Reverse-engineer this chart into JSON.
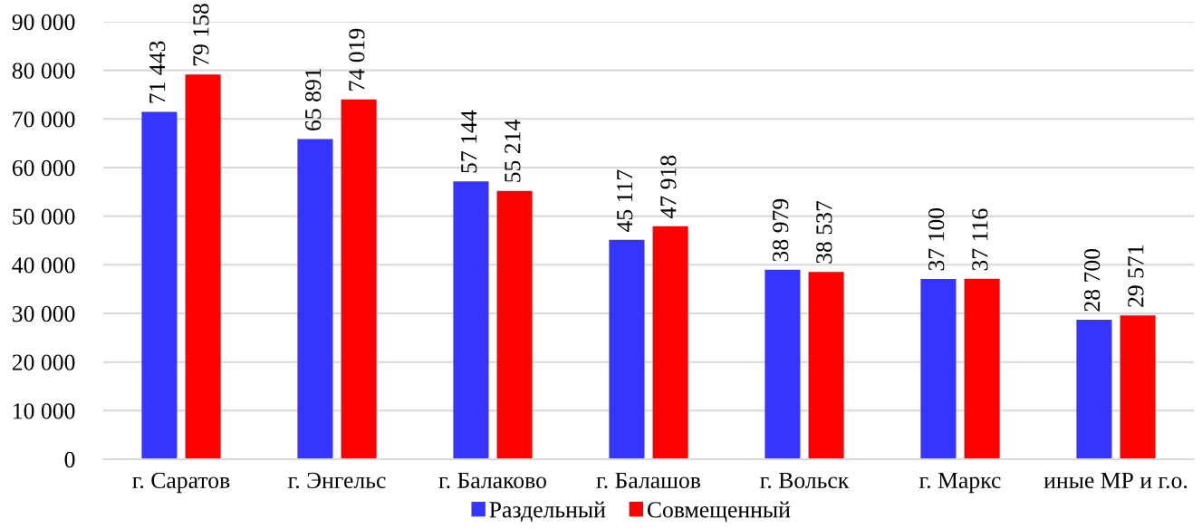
{
  "chart_data": {
    "type": "bar",
    "categories": [
      "г. Саратов",
      "г. Энгельс",
      "г. Балаково",
      "г. Балашов",
      "г. Вольск",
      "г. Маркс",
      "иные МР и г.о."
    ],
    "series": [
      {
        "name": "Раздельный",
        "color": "#3535ff",
        "values": [
          71443,
          65891,
          57144,
          45117,
          38979,
          37100,
          28700
        ],
        "value_labels": [
          "71 443",
          "65 891",
          "57 144",
          "45 117",
          "38 979",
          "37 100",
          "28 700"
        ]
      },
      {
        "name": "Совмещенный",
        "color": "#ff0000",
        "values": [
          79158,
          74019,
          55214,
          47918,
          38537,
          37116,
          29571
        ],
        "value_labels": [
          "79 158",
          "74 019",
          "55 214",
          "47 918",
          "38 537",
          "37 116",
          "29 571"
        ]
      }
    ],
    "ylim": [
      0,
      90000
    ],
    "yticks": [
      0,
      {
        "value": 10000,
        "label": "10 000"
      },
      {
        "value": 20000,
        "label": "20 000"
      },
      {
        "value": 30000,
        "label": "30 000"
      },
      {
        "value": 40000,
        "label": "40 000"
      },
      {
        "value": 50000,
        "label": "50 000"
      },
      {
        "value": 60000,
        "label": "60 000"
      },
      {
        "value": 70000,
        "label": "70 000"
      },
      {
        "value": 80000,
        "label": "80 000"
      },
      {
        "value": 90000,
        "label": "90 000"
      }
    ],
    "grid": "y",
    "legend": "bottom"
  }
}
